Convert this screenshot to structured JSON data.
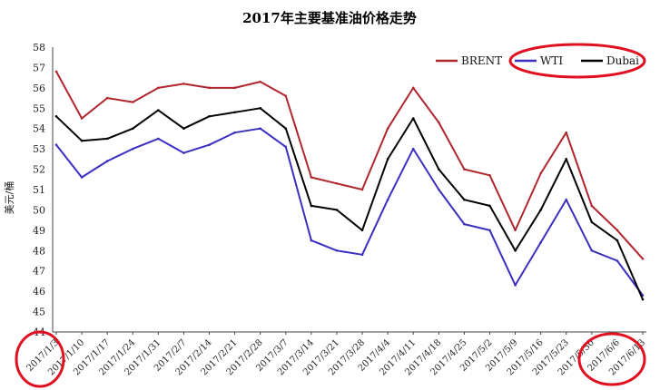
{
  "chart_data": {
    "type": "line",
    "title": "2017年主要基准油价格走势",
    "ylabel": "美元/桶",
    "xlabel": "",
    "ylim": [
      44,
      58
    ],
    "yticks": [
      44,
      45,
      46,
      47,
      48,
      49,
      50,
      51,
      52,
      53,
      54,
      55,
      56,
      57,
      58
    ],
    "legend_position": "top-right",
    "x": [
      "2017/1/3",
      "2017/1/10",
      "2017/1/17",
      "2017/1/24",
      "2017/1/31",
      "2017/2/7",
      "2017/2/14",
      "2017/2/21",
      "2017/2/28",
      "2017/3/7",
      "2017/3/14",
      "2017/3/21",
      "2017/3/28",
      "2017/4/4",
      "2017/4/11",
      "2017/4/18",
      "2017/4/25",
      "2017/5/2",
      "2017/5/9",
      "2017/5/16",
      "2017/5/23",
      "2017/5/30",
      "2017/6/6",
      "2017/6/13"
    ],
    "series": [
      {
        "name": "BRENT",
        "color": "#b0262e",
        "values": [
          56.8,
          54.5,
          55.5,
          55.3,
          56.0,
          56.2,
          56.0,
          56.0,
          56.3,
          55.6,
          51.6,
          51.3,
          51.0,
          54.0,
          56.0,
          54.3,
          52.0,
          51.7,
          49.0,
          51.8,
          53.8,
          50.2,
          49.0,
          47.6
        ]
      },
      {
        "name": "WTI",
        "color": "#3b2fbf",
        "values": [
          53.2,
          51.6,
          52.4,
          53.0,
          53.5,
          52.8,
          53.2,
          53.8,
          54.0,
          53.1,
          48.5,
          48.0,
          47.8,
          50.5,
          53.0,
          51.0,
          49.3,
          49.0,
          46.3,
          48.4,
          50.5,
          48.0,
          47.5,
          45.8
        ]
      },
      {
        "name": "Dubai",
        "color": "#000000",
        "values": [
          54.6,
          53.4,
          53.5,
          54.0,
          54.9,
          54.0,
          54.6,
          54.8,
          55.0,
          54.0,
          50.2,
          50.0,
          49.0,
          52.5,
          54.5,
          52.0,
          50.5,
          50.2,
          48.0,
          50.0,
          52.5,
          49.4,
          48.5,
          45.6
        ]
      }
    ]
  },
  "annotations": {
    "circle_color": "#e01020",
    "circled": [
      "legend",
      "first-date-label",
      "last-date-label"
    ]
  }
}
